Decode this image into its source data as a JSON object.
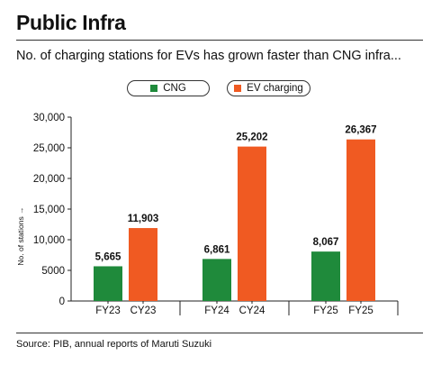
{
  "header": {
    "title": "Public Infra",
    "subtitle": "No. of charging stations for EVs has grown faster than CNG infra..."
  },
  "footer": {
    "source": "Source: PIB, annual reports of Maruti Suzuki"
  },
  "chart_data": {
    "type": "bar",
    "title": "",
    "xlabel": "",
    "ylabel": "No. of stations →",
    "ylim": [
      0,
      30000
    ],
    "yticks": [
      0,
      5000,
      10000,
      15000,
      20000,
      25000,
      30000
    ],
    "ytick_labels": [
      "0",
      "5000",
      "10,000",
      "15,000",
      "20,000",
      "25,000",
      "30,000"
    ],
    "grid": false,
    "legend_position": "top-center",
    "groups": [
      {
        "bars": [
          {
            "series": "CNG",
            "category": "FY23",
            "value": 5665,
            "label": "5,665"
          },
          {
            "series": "EV charging",
            "category": "CY23",
            "value": 11903,
            "label": "11,903"
          }
        ]
      },
      {
        "bars": [
          {
            "series": "CNG",
            "category": "FY24",
            "value": 6861,
            "label": "6,861"
          },
          {
            "series": "EV charging",
            "category": "CY24",
            "value": 25202,
            "label": "25,202"
          }
        ]
      },
      {
        "bars": [
          {
            "series": "CNG",
            "category": "FY25",
            "value": 8067,
            "label": "8,067"
          },
          {
            "series": "EV charging",
            "category": "FY25",
            "value": 26367,
            "label": "26,367"
          }
        ]
      }
    ],
    "series": [
      {
        "name": "CNG",
        "color": "#1f8a3b"
      },
      {
        "name": "EV charging",
        "color": "#f05a22"
      }
    ]
  }
}
